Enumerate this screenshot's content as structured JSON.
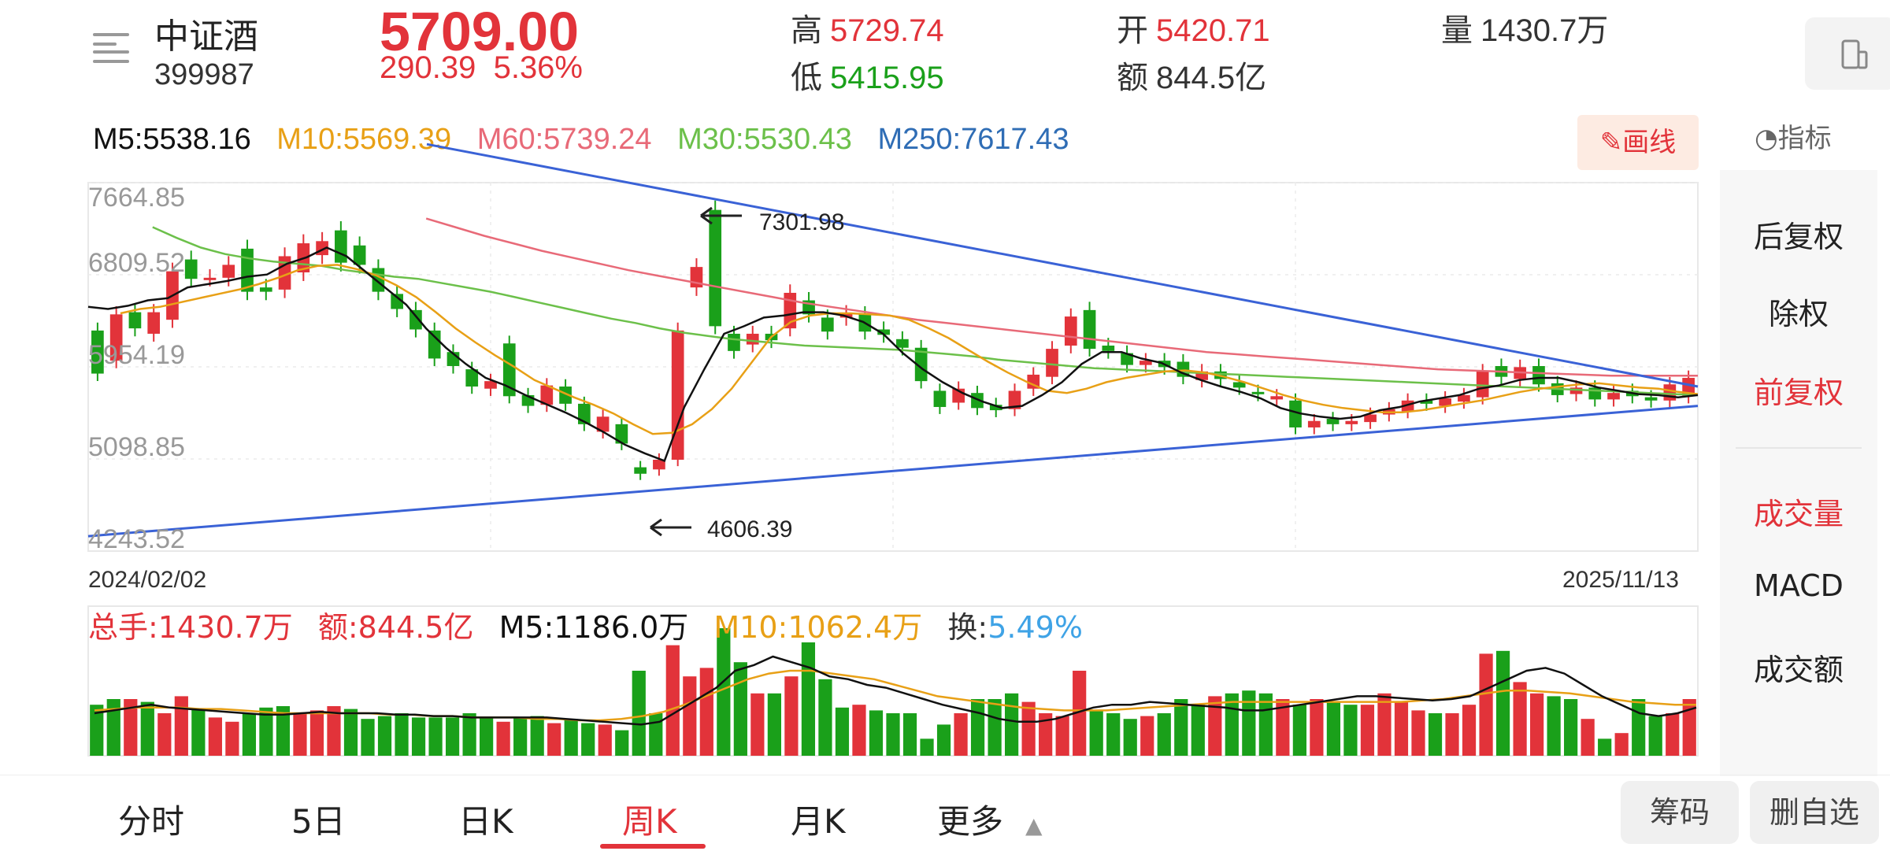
{
  "header": {
    "name": "中证酒",
    "code": "399987",
    "price": "5709.00",
    "change": "290.39",
    "change_pct": "5.36%",
    "high_label": "高",
    "high": "5729.74",
    "low_label": "低",
    "low": "5415.95",
    "open_label": "开",
    "open": "5420.71",
    "amount_label": "额",
    "amount": "844.5亿",
    "volume_label": "量",
    "volume": "1430.7万"
  },
  "ma": {
    "m5": "M5:5538.16",
    "m10": "M10:5569.39",
    "m60": "M60:5739.24",
    "m30": "M30:5530.43",
    "m250": "M250:7617.43"
  },
  "toolbar": {
    "draw_label": "画线",
    "indicator_label": "指标"
  },
  "right_panel": {
    "items": [
      "后复权",
      "除权",
      "前复权",
      "成交量",
      "MACD",
      "成交额"
    ]
  },
  "colors": {
    "up": "#e2333a",
    "down": "#1aa01a",
    "m5": "#111111",
    "m10": "#e8a016",
    "m30": "#6cc04a",
    "m60": "#e86a78",
    "m250": "#2f6db5",
    "trend": "#3a62d6"
  },
  "chart_data": {
    "type": "candlestick",
    "period": "weekly",
    "y_ticks": [
      "7664.85",
      "6809.52",
      "5954.19",
      "5098.85",
      "4243.52"
    ],
    "ylim": [
      4243.52,
      7664.85
    ],
    "x_start": "2024/02/02",
    "x_end": "2025/11/13",
    "annotations": [
      {
        "text": "7301.98"
      },
      {
        "text": "4606.39"
      }
    ],
    "candles": [
      [
        6160,
        5760
      ],
      [
        5880,
        6310
      ],
      [
        6330,
        6180
      ],
      [
        6130,
        6330
      ],
      [
        6260,
        6710
      ],
      [
        6820,
        6640
      ],
      [
        6650,
        6650
      ],
      [
        6650,
        6770
      ],
      [
        6920,
        6520
      ],
      [
        6560,
        6520
      ],
      [
        6540,
        6850
      ],
      [
        6700,
        6970
      ],
      [
        6860,
        6990
      ],
      [
        7090,
        6790
      ],
      [
        6950,
        6770
      ],
      [
        6740,
        6520
      ],
      [
        6500,
        6360
      ],
      [
        6350,
        6170
      ],
      [
        6160,
        5900
      ],
      [
        5960,
        5830
      ],
      [
        5800,
        5640
      ],
      [
        5620,
        5690
      ],
      [
        6040,
        5550
      ],
      [
        5560,
        5460
      ],
      [
        5470,
        5650
      ],
      [
        5640,
        5480
      ],
      [
        5480,
        5290
      ],
      [
        5220,
        5360
      ],
      [
        5290,
        5110
      ],
      [
        4890,
        4830
      ],
      [
        4870,
        4960
      ],
      [
        4960,
        6160
      ],
      [
        6560,
        6750
      ],
      [
        7280,
        6200
      ],
      [
        6130,
        5970
      ],
      [
        6030,
        6130
      ],
      [
        6130,
        6070
      ],
      [
        6180,
        6510
      ],
      [
        6440,
        6310
      ],
      [
        6280,
        6150
      ],
      [
        6280,
        6320
      ],
      [
        6310,
        6150
      ],
      [
        6170,
        6120
      ],
      [
        6080,
        6000
      ],
      [
        6000,
        5690
      ],
      [
        5600,
        5450
      ],
      [
        5490,
        5620
      ],
      [
        5580,
        5440
      ],
      [
        5470,
        5420
      ],
      [
        5430,
        5600
      ],
      [
        5620,
        5750
      ],
      [
        5730,
        5990
      ],
      [
        6020,
        6290
      ],
      [
        6350,
        5990
      ],
      [
        6020,
        5970
      ],
      [
        5950,
        5840
      ],
      [
        5840,
        5880
      ],
      [
        5880,
        5820
      ],
      [
        5870,
        5730
      ],
      [
        5700,
        5780
      ],
      [
        5780,
        5710
      ],
      [
        5680,
        5630
      ],
      [
        5590,
        5570
      ],
      [
        5520,
        5550
      ],
      [
        5510,
        5260
      ],
      [
        5260,
        5320
      ],
      [
        5340,
        5290
      ],
      [
        5290,
        5320
      ],
      [
        5310,
        5380
      ],
      [
        5380,
        5430
      ],
      [
        5410,
        5510
      ],
      [
        5510,
        5480
      ],
      [
        5460,
        5530
      ],
      [
        5500,
        5560
      ],
      [
        5540,
        5780
      ],
      [
        5830,
        5730
      ],
      [
        5710,
        5820
      ],
      [
        5830,
        5660
      ],
      [
        5670,
        5560
      ],
      [
        5570,
        5630
      ],
      [
        5630,
        5520
      ],
      [
        5520,
        5580
      ],
      [
        5600,
        5550
      ],
      [
        5540,
        5510
      ],
      [
        5510,
        5660
      ],
      [
        5550,
        5720
      ]
    ],
    "m5": [
      6380,
      6360,
      6390,
      6440,
      6460,
      6560,
      6590,
      6620,
      6660,
      6680,
      6780,
      6840,
      6930,
      6850,
      6700,
      6550,
      6400,
      6180,
      6000,
      5850,
      5720,
      5650,
      5560,
      5480,
      5400,
      5310,
      5210,
      5100,
      5020,
      4950,
      5450,
      5800,
      6130,
      6200,
      6280,
      6300,
      6330,
      6330,
      6300,
      6240,
      6130,
      5950,
      5800,
      5680,
      5580,
      5500,
      5440,
      5460,
      5560,
      5680,
      5850,
      5960,
      5960,
      5900,
      5860,
      5770,
      5700,
      5640,
      5590,
      5530,
      5440,
      5390,
      5360,
      5340,
      5360,
      5420,
      5450,
      5500,
      5530,
      5560,
      5620,
      5650,
      5700,
      5720,
      5720,
      5680,
      5630,
      5600,
      5570,
      5560,
      5540,
      5560
    ],
    "m10": [
      6320,
      6360,
      6380,
      6420,
      6460,
      6500,
      6540,
      6590,
      6650,
      6720,
      6760,
      6770,
      6730,
      6670,
      6580,
      6470,
      6330,
      6180,
      6050,
      5930,
      5820,
      5700,
      5620,
      5540,
      5470,
      5390,
      5290,
      5200,
      5210,
      5290,
      5430,
      5620,
      5860,
      6100,
      6240,
      6300,
      6320,
      6320,
      6310,
      6300,
      6260,
      6180,
      6090,
      5980,
      5870,
      5770,
      5680,
      5600,
      5580,
      5620,
      5680,
      5720,
      5750,
      5780,
      5790,
      5770,
      5730,
      5680,
      5620,
      5560,
      5510,
      5470,
      5440,
      5420,
      5400,
      5400,
      5420,
      5450,
      5480,
      5510,
      5550,
      5590,
      5620,
      5640,
      5660,
      5670,
      5650,
      5630,
      5620,
      5590,
      5570
    ],
    "m30": [
      7120,
      7020,
      6930,
      6870,
      6830,
      6800,
      6780,
      6760,
      6720,
      6690,
      6660,
      6640,
      6600,
      6560,
      6520,
      6470,
      6420,
      6370,
      6320,
      6270,
      6230,
      6180,
      6140,
      6110,
      6080,
      6060,
      6040,
      6020,
      6010,
      6000,
      5990,
      5980,
      5960,
      5940,
      5920,
      5890,
      5870,
      5850,
      5830,
      5810,
      5800,
      5790,
      5780,
      5770,
      5760,
      5750,
      5740,
      5730,
      5720,
      5710,
      5700,
      5690,
      5680,
      5670,
      5660,
      5650,
      5640,
      5630,
      5620,
      5610,
      5600,
      5590,
      5580,
      5570,
      5560
    ],
    "m60": [
      7200,
      7120,
      7040,
      6970,
      6900,
      6840,
      6780,
      6720,
      6670,
      6620,
      6570,
      6520,
      6470,
      6420,
      6380,
      6340,
      6300,
      6260,
      6230,
      6200,
      6170,
      6140,
      6110,
      6080,
      6050,
      6020,
      5990,
      5960,
      5940,
      5920,
      5900,
      5880,
      5860,
      5840,
      5820,
      5800,
      5790,
      5780,
      5770,
      5760,
      5750,
      5740,
      5740,
      5740,
      5740
    ],
    "trend_upper": [
      7890,
      5640
    ],
    "trend_lower": [
      4250,
      5460
    ],
    "volume": {
      "total_label": "总手:1430.7万",
      "amount_label": "额:844.5亿",
      "m5_label": "M5:1186.0万",
      "m10_label": "M10:1062.4万",
      "turnover_label": "换:",
      "turnover_value": "5.49%",
      "bars": [
        36,
        40,
        40,
        38,
        30,
        42,
        33,
        27,
        24,
        30,
        34,
        35,
        30,
        32,
        35,
        33,
        26,
        28,
        30,
        27,
        27,
        27,
        30,
        27,
        24,
        27,
        28,
        23,
        26,
        23,
        22,
        18,
        60,
        30,
        78,
        56,
        62,
        90,
        66,
        44,
        44,
        56,
        80,
        54,
        34,
        36,
        32,
        30,
        30,
        12,
        22,
        30,
        40,
        40,
        44,
        38,
        30,
        28,
        60,
        32,
        30,
        26,
        28,
        30,
        40,
        36,
        42,
        44,
        46,
        44,
        40,
        36,
        40,
        38,
        36,
        36,
        44,
        38,
        32,
        30,
        30,
        36,
        72,
        74,
        52,
        44,
        42,
        40,
        26,
        12,
        16,
        40,
        28,
        30,
        40
      ],
      "vm5": [
        30,
        32,
        34,
        36,
        34,
        33,
        32,
        31,
        30,
        29,
        29,
        30,
        31,
        30,
        30,
        30,
        29,
        29,
        28,
        28,
        27,
        27,
        27,
        27,
        27,
        26,
        25,
        24,
        23,
        22,
        24,
        32,
        40,
        48,
        60,
        64,
        70,
        66,
        62,
        56,
        54,
        50,
        48,
        44,
        40,
        36,
        33,
        30,
        26,
        24,
        24,
        26,
        30,
        34,
        36,
        36,
        38,
        37,
        36,
        35,
        34,
        32,
        32,
        34,
        36,
        38,
        40,
        42,
        42,
        41,
        40,
        39,
        40,
        42,
        48,
        54,
        60,
        62,
        58,
        50,
        42,
        36,
        30,
        28,
        30,
        34
      ],
      "vm10": [
        32,
        33,
        34,
        34,
        34,
        33,
        33,
        32,
        31,
        30,
        30,
        30,
        30,
        30,
        29,
        29,
        28,
        28,
        27,
        27,
        27,
        26,
        26,
        25,
        25,
        26,
        28,
        31,
        36,
        42,
        48,
        54,
        58,
        60,
        60,
        58,
        56,
        54,
        50,
        46,
        42,
        40,
        38,
        36,
        34,
        33,
        32,
        32,
        32,
        33,
        34,
        35,
        36,
        37,
        38,
        38,
        38,
        38,
        38,
        38,
        38,
        38,
        38,
        39,
        40,
        42,
        44,
        46,
        46,
        45,
        44,
        42,
        40,
        38,
        37,
        36,
        36
      ]
    }
  },
  "tabs": [
    "分时",
    "5日",
    "日K",
    "周K",
    "月K",
    "更多"
  ],
  "active_tab": "周K",
  "buttons": {
    "chips": "筹码",
    "remove": "删自选"
  }
}
